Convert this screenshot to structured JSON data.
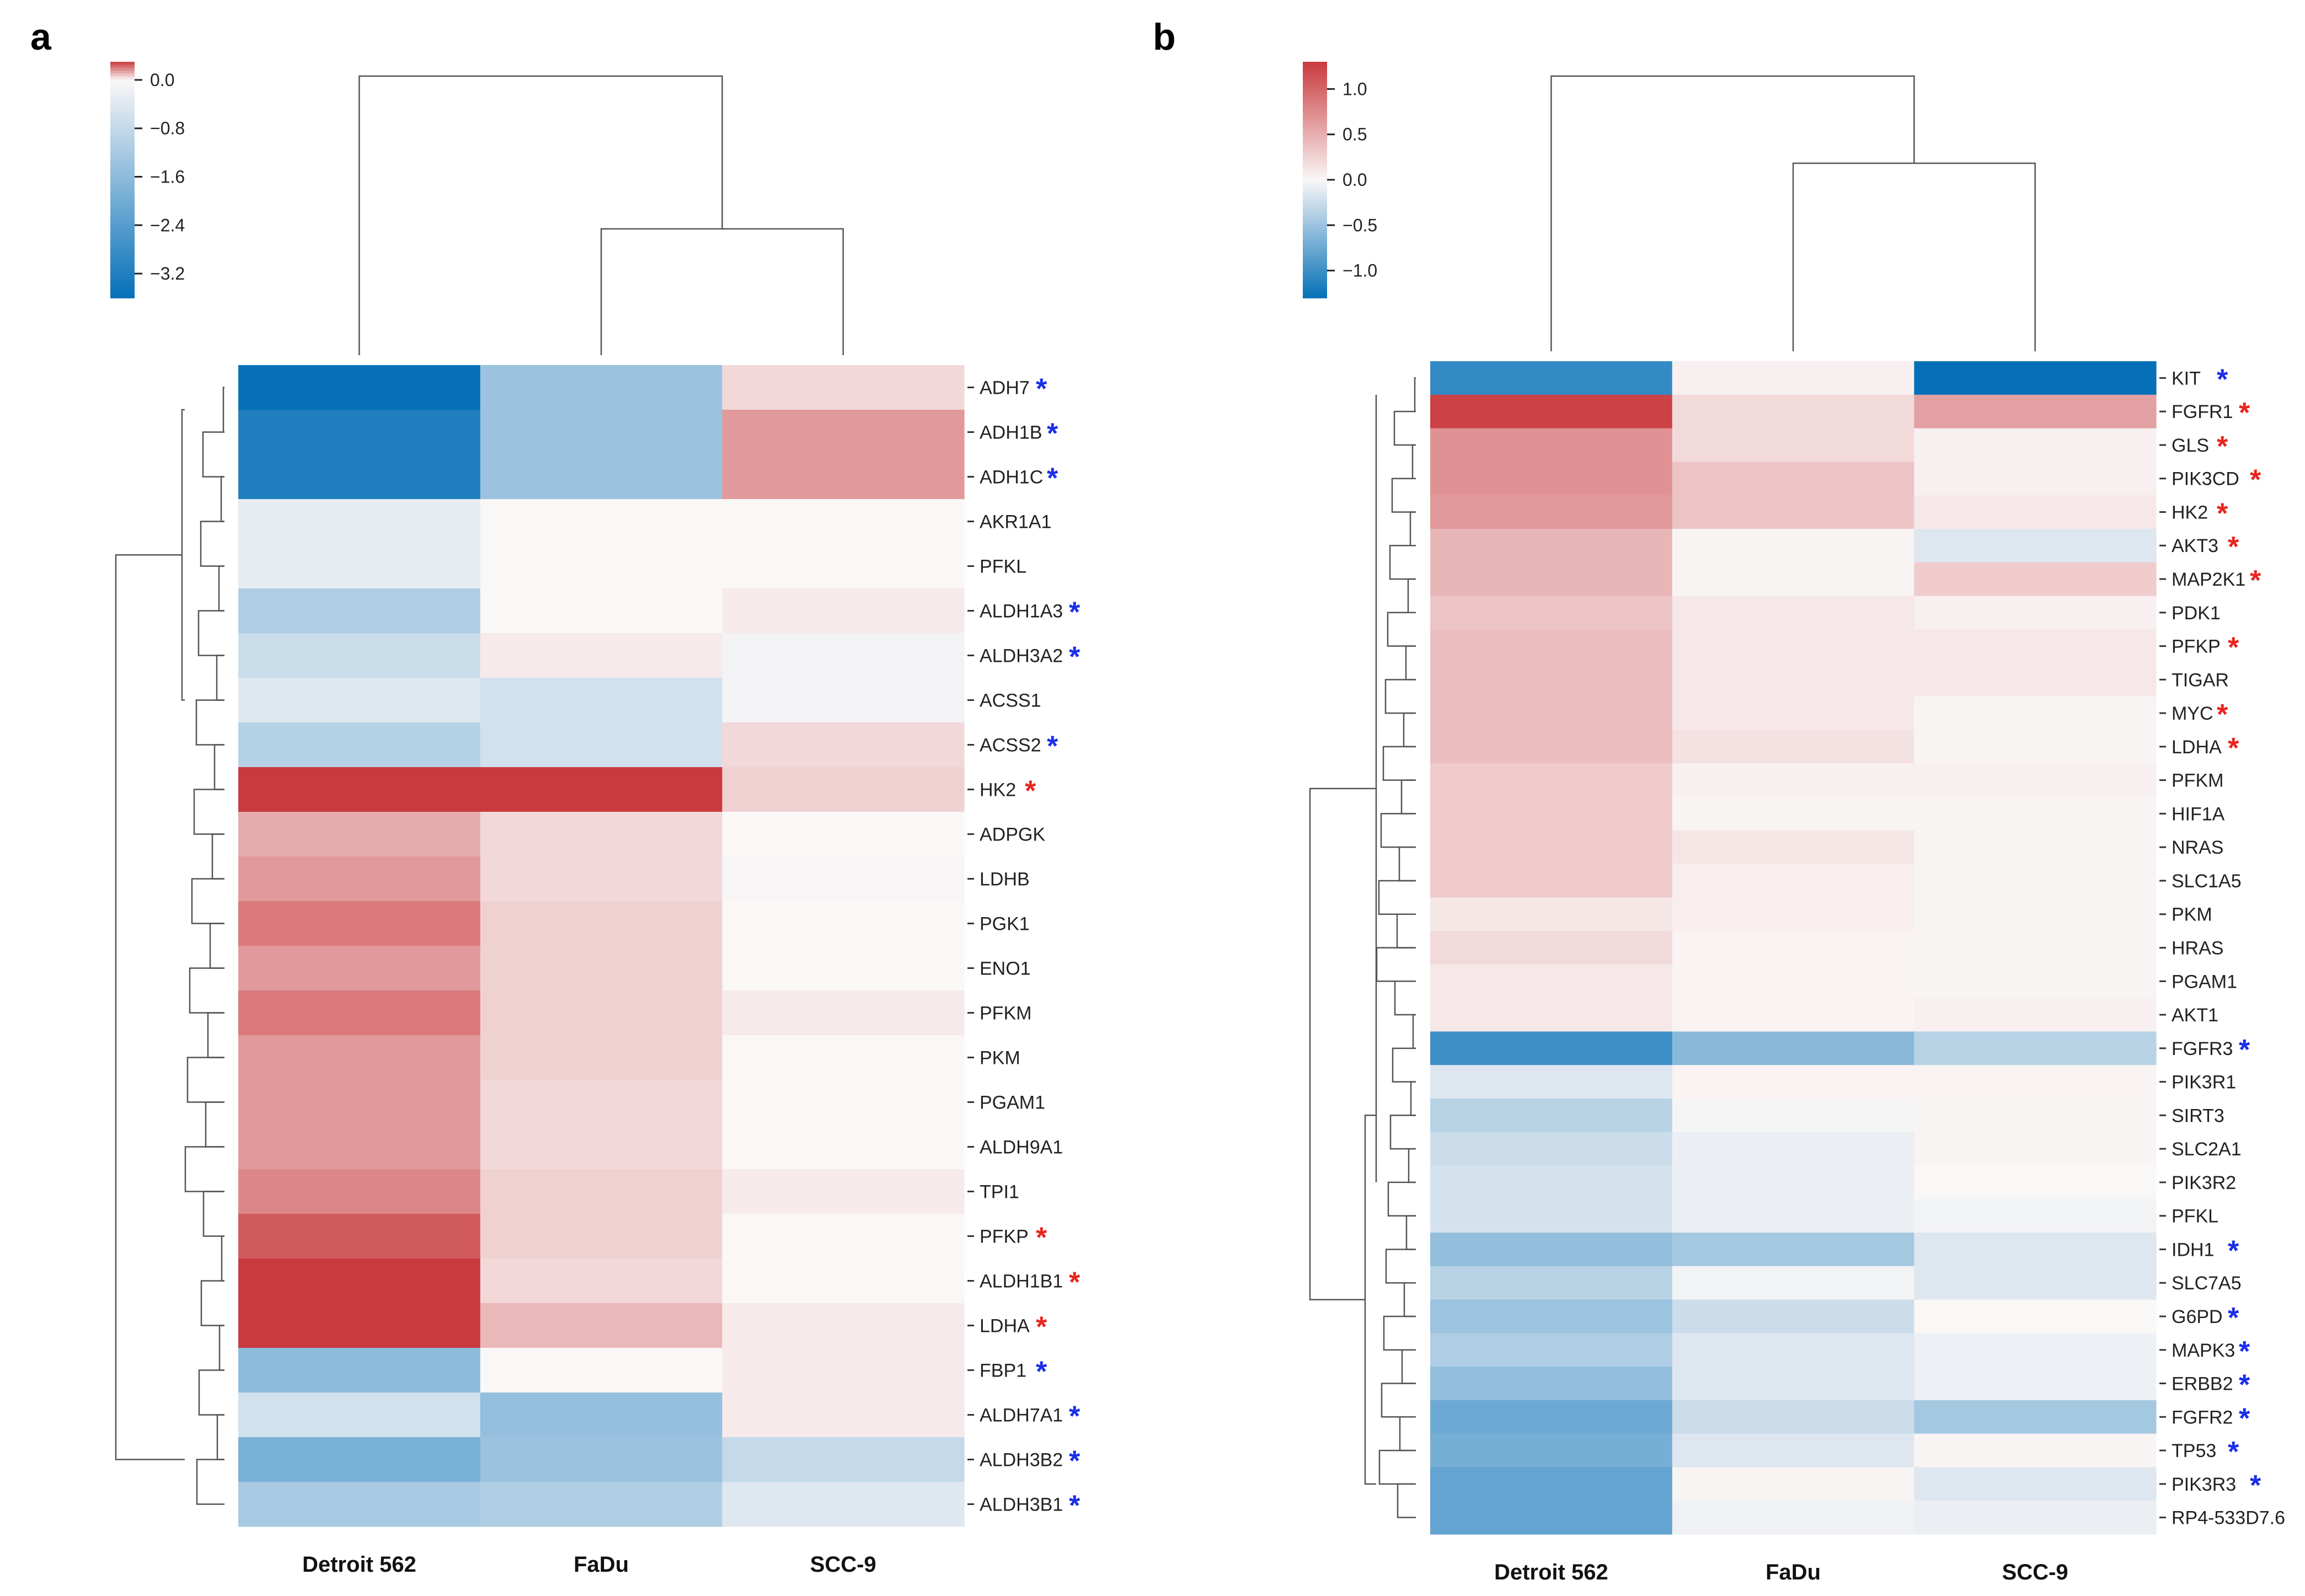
{
  "chart_data": [
    {
      "type": "heatmap",
      "panel_label": "a",
      "columns": [
        "Detroit 562",
        "FaDu",
        "SCC-9"
      ],
      "rows": [
        "ADH7",
        "ADH1B",
        "ADH1C",
        "AKR1A1",
        "PFKL",
        "ALDH1A3",
        "ALDH3A2",
        "ACSS1",
        "ACSS2",
        "HK2",
        "ADPGK",
        "LDHB",
        "PGK1",
        "ENO1",
        "PFKM",
        "PKM",
        "PGAM1",
        "ALDH9A1",
        "TPI1",
        "PFKP",
        "ALDH1B1",
        "LDHA",
        "FBP1",
        "ALDH7A1",
        "ALDH3B2",
        "ALDH3B1"
      ],
      "markers": [
        "blue",
        "blue",
        "blue",
        "",
        "",
        "blue",
        "blue",
        "",
        "blue",
        "red",
        "",
        "",
        "",
        "",
        "",
        "",
        "",
        "",
        "",
        "red",
        "red",
        "red",
        "blue",
        "blue",
        "blue",
        "blue"
      ],
      "values": [
        [
          -3.6,
          -1.4,
          0.05
        ],
        [
          -3.2,
          -1.4,
          0.15
        ],
        [
          -3.2,
          -1.4,
          0.15
        ],
        [
          -0.3,
          0.0,
          0.0
        ],
        [
          -0.3,
          0.0,
          0.0
        ],
        [
          -1.1,
          0.0,
          0.02
        ],
        [
          -0.7,
          0.02,
          -0.1
        ],
        [
          -0.4,
          -0.6,
          -0.1
        ],
        [
          -1.0,
          -0.6,
          0.05
        ],
        [
          0.6,
          0.3,
          0.06
        ],
        [
          0.12,
          0.05,
          0.0
        ],
        [
          0.15,
          0.05,
          -0.05
        ],
        [
          0.2,
          0.06,
          0.0
        ],
        [
          0.15,
          0.06,
          0.0
        ],
        [
          0.2,
          0.06,
          0.02
        ],
        [
          0.15,
          0.06,
          0.0
        ],
        [
          0.15,
          0.05,
          0.0
        ],
        [
          0.15,
          0.05,
          0.0
        ],
        [
          0.18,
          0.06,
          0.02
        ],
        [
          0.25,
          0.06,
          0.0
        ],
        [
          0.3,
          0.05,
          0.0
        ],
        [
          0.3,
          0.1,
          0.02
        ],
        [
          -1.6,
          0.0,
          0.02
        ],
        [
          -0.6,
          -1.5,
          0.02
        ],
        [
          -1.9,
          -1.4,
          -0.8
        ],
        [
          -1.2,
          -1.1,
          -0.4
        ]
      ],
      "colorbar": {
        "ticks": [
          "0.0",
          "−0.8",
          "−1.6",
          "−2.4",
          "−3.2"
        ],
        "tick_values": [
          0,
          -0.8,
          -1.6,
          -2.4,
          -3.2
        ],
        "range": [
          -3.6,
          0.3
        ]
      },
      "colors": {
        "negative": "#0570b8",
        "neutral": "#faf7f7",
        "positive": "#c93a3e"
      }
    },
    {
      "type": "heatmap",
      "panel_label": "b",
      "columns": [
        "Detroit 562",
        "FaDu",
        "SCC-9"
      ],
      "rows": [
        "KIT",
        "FGFR1",
        "GLS",
        "PIK3CD",
        "HK2",
        "AKT3",
        "MAP2K1",
        "PDK1",
        "PFKP",
        "TIGAR",
        "MYC",
        "LDHA",
        "PFKM",
        "HIF1A",
        "NRAS",
        "SLC1A5",
        "PKM",
        "HRAS",
        "PGAM1",
        "AKT1",
        "FGFR3",
        "PIK3R1",
        "SIRT3",
        "SLC2A1",
        "PIK3R2",
        "PFKL",
        "IDH1",
        "SLC7A5",
        "G6PD",
        "MAPK3",
        "ERBB2",
        "FGFR2",
        "TP53",
        "PIK3R3",
        "RP4-533D7.6"
      ],
      "markers": [
        "blue",
        "red",
        "red",
        "red",
        "red",
        "red",
        "red",
        "",
        "red",
        "",
        "red",
        "red",
        "",
        "",
        "",
        "",
        "",
        "",
        "",
        "",
        "blue",
        "",
        "",
        "",
        "",
        "",
        "blue",
        "",
        "blue",
        "blue",
        "blue",
        "blue",
        "blue",
        "blue",
        ""
      ],
      "values": [
        [
          -1.05,
          0.05,
          -1.3
        ],
        [
          1.25,
          0.2,
          0.6
        ],
        [
          0.7,
          0.2,
          0.05
        ],
        [
          0.7,
          0.35,
          0.05
        ],
        [
          0.65,
          0.35,
          0.1
        ],
        [
          0.45,
          0.02,
          -0.15
        ],
        [
          0.45,
          0.02,
          0.3
        ],
        [
          0.35,
          0.1,
          0.05
        ],
        [
          0.4,
          0.1,
          0.1
        ],
        [
          0.4,
          0.1,
          0.1
        ],
        [
          0.4,
          0.1,
          0.02
        ],
        [
          0.4,
          0.15,
          0.02
        ],
        [
          0.3,
          0.05,
          0.05
        ],
        [
          0.3,
          0.02,
          0.02
        ],
        [
          0.3,
          0.12,
          0.02
        ],
        [
          0.3,
          0.06,
          0.02
        ],
        [
          0.12,
          0.06,
          0.02
        ],
        [
          0.2,
          0.03,
          0.02
        ],
        [
          0.1,
          0.03,
          0.02
        ],
        [
          0.1,
          0.03,
          0.05
        ],
        [
          -1.0,
          -0.6,
          -0.35
        ],
        [
          -0.15,
          0.03,
          0.03
        ],
        [
          -0.35,
          -0.02,
          0.02
        ],
        [
          -0.25,
          -0.08,
          0.02
        ],
        [
          -0.2,
          -0.08,
          0.0
        ],
        [
          -0.2,
          -0.08,
          -0.04
        ],
        [
          -0.55,
          -0.45,
          -0.15
        ],
        [
          -0.35,
          -0.04,
          -0.15
        ],
        [
          -0.5,
          -0.25,
          0.0
        ],
        [
          -0.4,
          -0.15,
          -0.07
        ],
        [
          -0.55,
          -0.15,
          -0.07
        ],
        [
          -0.75,
          -0.25,
          -0.45
        ],
        [
          -0.7,
          -0.15,
          0.02
        ],
        [
          -0.8,
          0.02,
          -0.15
        ],
        [
          -0.8,
          -0.06,
          -0.08
        ]
      ],
      "colorbar": {
        "ticks": [
          "1.0",
          "0.5",
          "0.0",
          "−0.5",
          "−1.0"
        ],
        "tick_values": [
          1,
          0.5,
          0,
          -0.5,
          -1
        ],
        "range": [
          -1.3,
          1.3
        ]
      },
      "colors": {
        "negative": "#0570b8",
        "neutral": "#faf7f7",
        "positive": "#c93a3e"
      }
    }
  ]
}
